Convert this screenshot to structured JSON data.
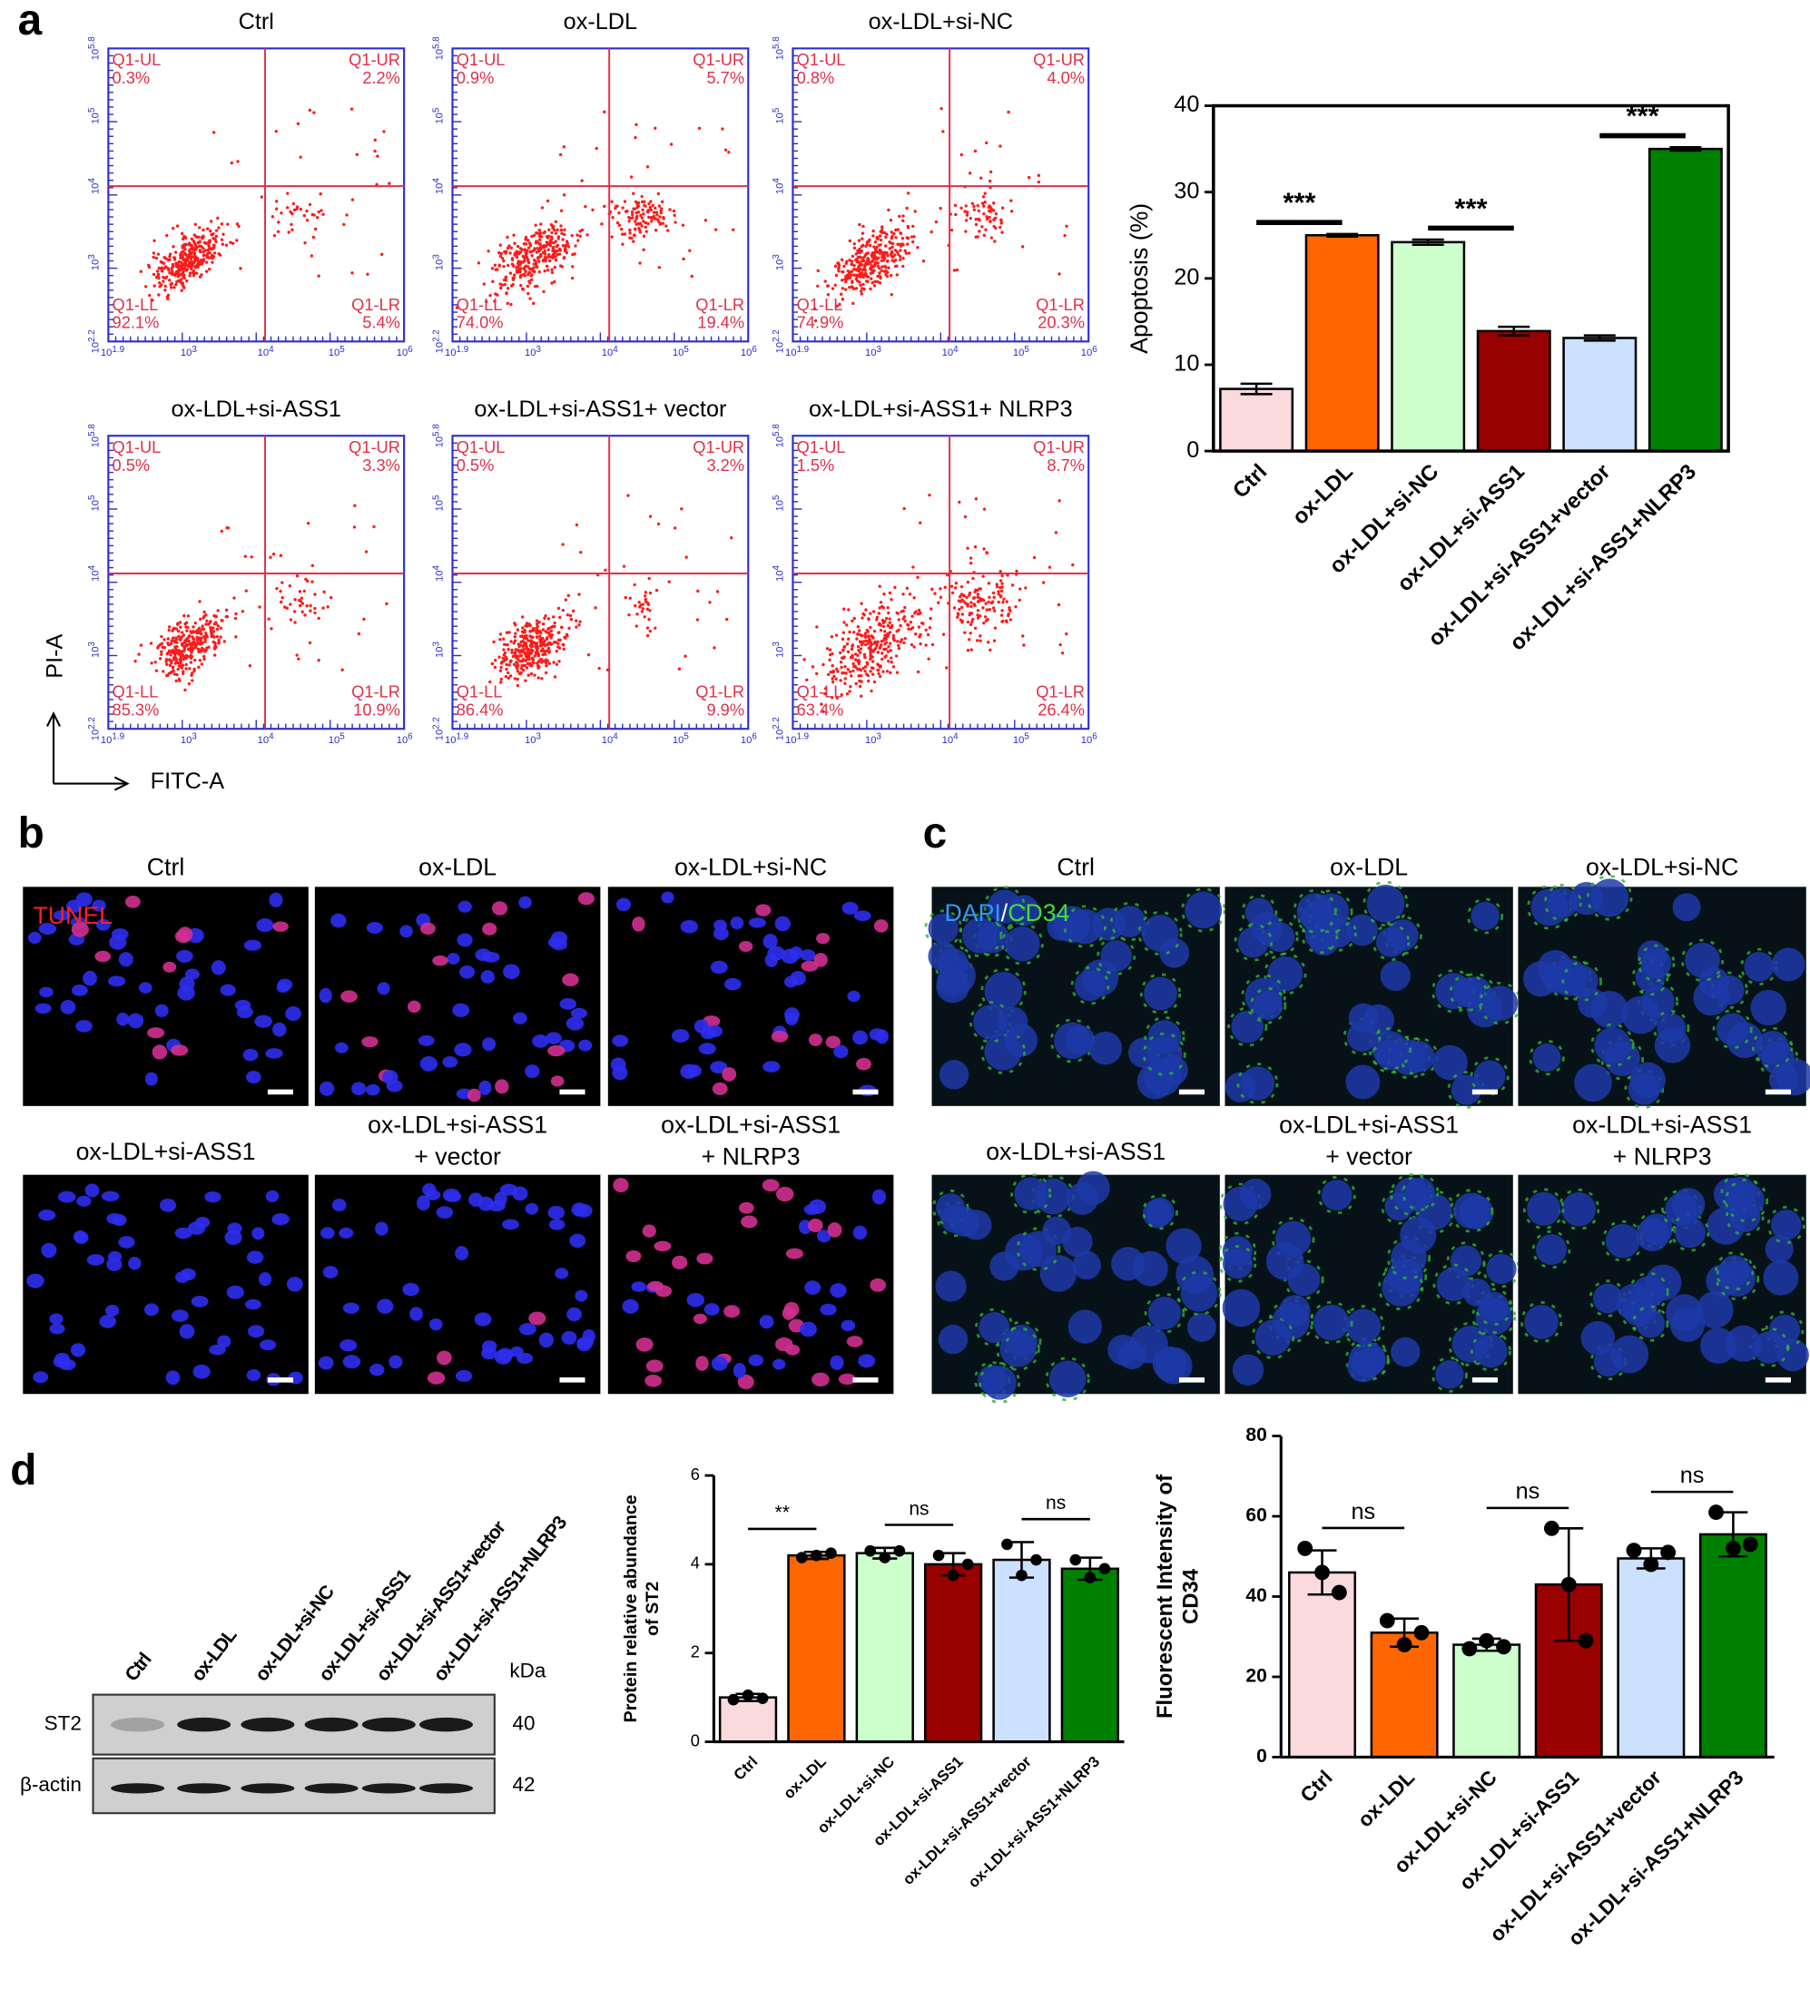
{
  "panel_labels": [
    "a",
    "b",
    "c",
    "d"
  ],
  "flow_cytometry": {
    "x_label": "FITC-A",
    "y_label": "PI-A",
    "x_ticks": [
      {
        "base": "10",
        "exponent": "1.9"
      },
      {
        "base": "10",
        "exponent": "3"
      },
      {
        "base": "10",
        "exponent": "4"
      },
      {
        "base": "10",
        "exponent": "5"
      },
      {
        "base": "10",
        "exponent": "6"
      }
    ],
    "y_ticks": [
      {
        "base": "10",
        "exponent": "2.2"
      },
      {
        "base": "10",
        "exponent": "3"
      },
      {
        "base": "10",
        "exponent": "4"
      },
      {
        "base": "10",
        "exponent": "5"
      },
      {
        "base": "10",
        "exponent": "5.8"
      }
    ],
    "panels": [
      {
        "title": "Ctrl",
        "quadrants": [
          {
            "name": "Q1-UL",
            "value": "0.3%"
          },
          {
            "name": "Q1-UR",
            "value": "2.2%"
          },
          {
            "name": "Q1-LL",
            "value": "92.1%"
          },
          {
            "name": "Q1-LR",
            "value": "5.4%"
          }
        ]
      },
      {
        "title": "ox-LDL",
        "quadrants": [
          {
            "name": "Q1-UL",
            "value": "0.9%"
          },
          {
            "name": "Q1-UR",
            "value": "5.7%"
          },
          {
            "name": "Q1-LL",
            "value": "74.0%"
          },
          {
            "name": "Q1-LR",
            "value": "19.4%"
          }
        ]
      },
      {
        "title": "ox-LDL+si-NC",
        "quadrants": [
          {
            "name": "Q1-UL",
            "value": "0.8%"
          },
          {
            "name": "Q1-UR",
            "value": "4.0%"
          },
          {
            "name": "Q1-LL",
            "value": "74.9%"
          },
          {
            "name": "Q1-LR",
            "value": "20.3%"
          }
        ]
      },
      {
        "title": "ox-LDL+si-ASS1",
        "quadrants": [
          {
            "name": "Q1-UL",
            "value": "0.5%"
          },
          {
            "name": "Q1-UR",
            "value": "3.3%"
          },
          {
            "name": "Q1-LL",
            "value": "85.3%"
          },
          {
            "name": "Q1-LR",
            "value": "10.9%"
          }
        ]
      },
      {
        "title": "ox-LDL+si-ASS1+ vector",
        "quadrants": [
          {
            "name": "Q1-UL",
            "value": "0.5%"
          },
          {
            "name": "Q1-UR",
            "value": "3.2%"
          },
          {
            "name": "Q1-LL",
            "value": "86.4%"
          },
          {
            "name": "Q1-LR",
            "value": "9.9%"
          }
        ]
      },
      {
        "title": "ox-LDL+si-ASS1+ NLRP3",
        "quadrants": [
          {
            "name": "Q1-UL",
            "value": "1.5%"
          },
          {
            "name": "Q1-UR",
            "value": "8.7%"
          },
          {
            "name": "Q1-LL",
            "value": "63.4%"
          },
          {
            "name": "Q1-LR",
            "value": "26.4%"
          }
        ]
      }
    ]
  },
  "microscopy": {
    "tunel": {
      "stain_label": "TUNEL",
      "images": [
        {
          "title": [
            "Ctrl"
          ]
        },
        {
          "title": [
            "ox-LDL"
          ]
        },
        {
          "title": [
            "ox-LDL+si-NC"
          ]
        },
        {
          "title": [
            "ox-LDL+si-ASS1"
          ]
        },
        {
          "title": [
            "ox-LDL+si-ASS1",
            "+ vector"
          ]
        },
        {
          "title": [
            "ox-LDL+si-ASS1",
            "+ NLRP3"
          ]
        }
      ]
    },
    "cd34": {
      "stain_label": [
        "DAPI",
        "/",
        "CD34"
      ],
      "images": [
        {
          "title": [
            "Ctrl"
          ]
        },
        {
          "title": [
            "ox-LDL"
          ]
        },
        {
          "title": [
            "ox-LDL+si-NC"
          ]
        },
        {
          "title": [
            "ox-LDL+si-ASS1"
          ]
        },
        {
          "title": [
            "ox-LDL+si-ASS1",
            "+ vector"
          ]
        },
        {
          "title": [
            "ox-LDL+si-ASS1",
            "+ NLRP3"
          ]
        }
      ]
    }
  },
  "western_blot": {
    "lanes": [
      "Ctrl",
      "ox-LDL",
      "ox-LDL+si-NC",
      "ox-LDL+si-ASS1",
      "ox-LDL+si-ASS1+vector",
      "ox-LDL+si-ASS1+NLRP3"
    ],
    "unit": "kDa",
    "rows": [
      {
        "name": "ST2",
        "kda": 40
      },
      {
        "name": "β-actin",
        "kda": 42
      }
    ]
  },
  "chart_data": [
    {
      "type": "bar",
      "ylabel": [
        "Apoptosis (%)"
      ],
      "categories": [
        "Ctrl",
        "ox-LDL",
        "ox-LDL+si-NC",
        "ox-LDL+si-ASS1",
        "ox-LDL+si-ASS1+vector",
        "ox-LDL+si-ASS1+NLRP3"
      ],
      "values": [
        7.2,
        25,
        24.2,
        13.9,
        13.1,
        35
      ],
      "errors": [
        0.6,
        0.15,
        0.3,
        0.5,
        0.3,
        0.2
      ],
      "colors": [
        "#fadadd",
        "#ff6600",
        "#ccffcc",
        "#990000",
        "#cce0ff",
        "#008000"
      ],
      "ylim": [
        0,
        40
      ],
      "yticks": [
        0,
        10,
        20,
        30,
        40
      ],
      "annotations": [
        "***",
        "***",
        "***"
      ]
    },
    {
      "type": "bar",
      "ylabel": [
        "Protein relative abundance",
        "of ST2"
      ],
      "categories": [
        "Ctrl",
        "ox-LDL",
        "ox-LDL+si-NC",
        "ox-LDL+si-ASS1",
        "ox-LDL+si-ASS1+vector",
        "ox-LDL+si-ASS1+NLRP3"
      ],
      "values": [
        1.0,
        4.2,
        4.25,
        4.0,
        4.1,
        3.9
      ],
      "errors": [
        0.08,
        0.08,
        0.12,
        0.25,
        0.4,
        0.25
      ],
      "points": [
        [
          0.95,
          1.05,
          0.98
        ],
        [
          4.15,
          4.2,
          4.25
        ],
        [
          4.3,
          4.15,
          4.3
        ],
        [
          4.2,
          3.75,
          4.0
        ],
        [
          4.45,
          3.75,
          4.1
        ],
        [
          4.1,
          3.7,
          3.9
        ]
      ],
      "colors": [
        "#fadadd",
        "#ff6600",
        "#ccffcc",
        "#990000",
        "#cce0ff",
        "#008000"
      ],
      "ylim": [
        0,
        6
      ],
      "yticks": [
        0,
        2,
        4,
        6
      ],
      "annotations": [
        "**",
        "ns",
        "ns"
      ]
    },
    {
      "type": "bar",
      "ylabel": [
        "Fluorescent Intensity of",
        "CD34"
      ],
      "categories": [
        "Ctrl",
        "ox-LDL",
        "ox-LDL+si-NC",
        "ox-LDL+si-ASS1",
        "ox-LDL+si-ASS1+vector",
        "ox-LDL+si-ASS1+NLRP3"
      ],
      "values": [
        46,
        31,
        28,
        43,
        49.5,
        55.5
      ],
      "errors": [
        5.5,
        3.5,
        1.5,
        14,
        2.5,
        5.5
      ],
      "points": [
        [
          52,
          46,
          41
        ],
        [
          34,
          28,
          31
        ],
        [
          27,
          29,
          27.5
        ],
        [
          57,
          43,
          29
        ],
        [
          51.5,
          48,
          51
        ],
        [
          61,
          52,
          53
        ]
      ],
      "colors": [
        "#fadadd",
        "#ff6600",
        "#ccffcc",
        "#990000",
        "#cce0ff",
        "#008000"
      ],
      "ylim": [
        0,
        80
      ],
      "yticks": [
        0,
        20,
        40,
        60,
        80
      ],
      "annotations": [
        "ns",
        "ns",
        "ns"
      ]
    }
  ]
}
